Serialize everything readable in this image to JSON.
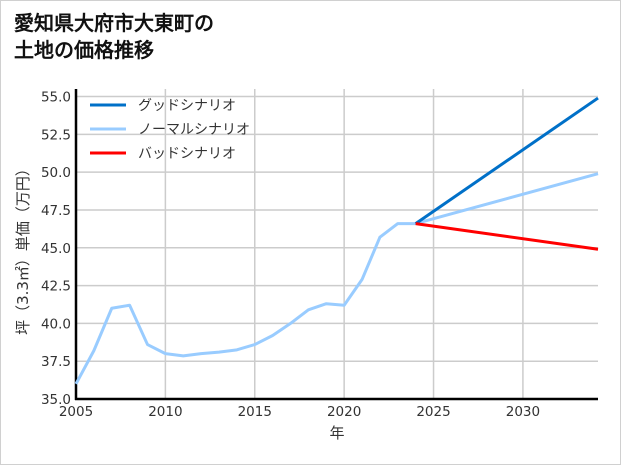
{
  "chart_data": {
    "type": "line",
    "title": "愛知県大府市大東町の\n土地の価格推移",
    "xlabel": "年",
    "ylabel": "坪（3.3㎡）単価（万円）",
    "xlim": [
      2005,
      2034.2
    ],
    "ylim": [
      35.0,
      55.5
    ],
    "xticks": [
      2005,
      2010,
      2015,
      2020,
      2025,
      2030
    ],
    "yticks": [
      35.0,
      37.5,
      40.0,
      42.5,
      45.0,
      47.5,
      50.0,
      52.5,
      55.0
    ],
    "grid": true,
    "legend_position": "top-left",
    "series": [
      {
        "name": "グッドシナリオ",
        "color": "#0070c8",
        "x": [
          2024,
          2034.2
        ],
        "y": [
          46.6,
          54.9
        ]
      },
      {
        "name": "ノーマルシナリオ",
        "color": "#99ccff",
        "x": [
          2005,
          2006,
          2007,
          2008,
          2009,
          2010,
          2011,
          2012,
          2013,
          2014,
          2015,
          2016,
          2017,
          2018,
          2019,
          2020,
          2021,
          2022,
          2023,
          2024,
          2034.2
        ],
        "y": [
          36.0,
          38.2,
          41.0,
          41.2,
          38.6,
          38.0,
          37.85,
          38.0,
          38.1,
          38.25,
          38.6,
          39.2,
          40.0,
          40.9,
          41.3,
          41.2,
          42.9,
          45.7,
          46.6,
          46.6,
          49.9
        ]
      },
      {
        "name": "バッドシナリオ",
        "color": "#ff0000",
        "x": [
          2024,
          2034.2
        ],
        "y": [
          46.6,
          44.9
        ]
      }
    ]
  }
}
